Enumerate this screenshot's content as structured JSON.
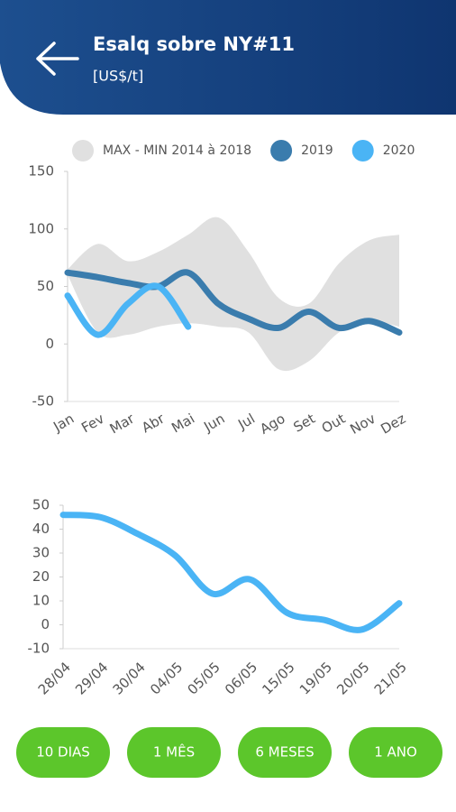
{
  "header": {
    "title": "Esalq sobre NY#11",
    "subtitle": "[US$/t]"
  },
  "chart_data": [
    {
      "type": "line",
      "categories": [
        "Jan",
        "Fev",
        "Mar",
        "Abr",
        "Mai",
        "Jun",
        "Jul",
        "Ago",
        "Set",
        "Out",
        "Nov",
        "Dez"
      ],
      "ylim": [
        -50,
        150
      ],
      "yticks": [
        -50,
        0,
        50,
        100,
        150
      ],
      "series": [
        {
          "name": "MAX - MIN 2014 à 2018",
          "color": "#e0e0e0",
          "max": [
            65,
            87,
            72,
            80,
            95,
            110,
            80,
            40,
            35,
            70,
            90,
            95
          ],
          "min": [
            60,
            10,
            8,
            15,
            18,
            15,
            10,
            -22,
            -15,
            10,
            20,
            15
          ]
        },
        {
          "name": "2019",
          "color": "#3a7cad",
          "values": [
            62,
            58,
            53,
            50,
            62,
            35,
            22,
            14,
            28,
            14,
            20,
            10
          ]
        },
        {
          "name": "2020",
          "color": "#4ab4f5",
          "values": [
            42,
            8,
            35,
            50,
            15,
            null,
            null,
            null,
            null,
            null,
            null,
            null
          ]
        }
      ]
    },
    {
      "type": "line",
      "categories": [
        "28/04",
        "29/04",
        "30/04",
        "04/05",
        "05/05",
        "06/05",
        "15/05",
        "19/05",
        "20/05",
        "21/05"
      ],
      "ylim": [
        -10,
        50
      ],
      "yticks": [
        -10,
        0,
        10,
        20,
        30,
        40,
        50
      ],
      "series": [
        {
          "color": "#4ab4f5",
          "values": [
            46,
            45,
            38,
            29,
            13,
            19,
            5,
            2,
            -2,
            9
          ]
        }
      ]
    }
  ],
  "buttons": [
    "10 DIAS",
    "1 MÊS",
    "6 MESES",
    "1 ANO"
  ]
}
